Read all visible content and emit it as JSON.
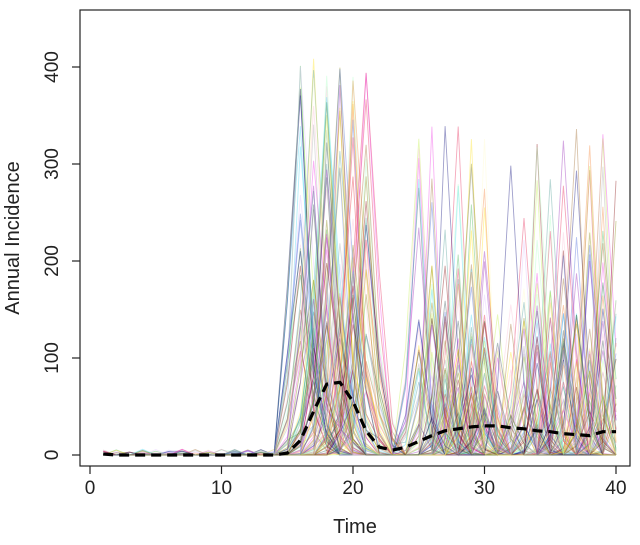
{
  "chart_data": {
    "type": "line",
    "title": "",
    "xlabel": "Time",
    "ylabel": "Annual Incidence",
    "xlim": [
      0,
      41
    ],
    "ylim": [
      0,
      450
    ],
    "x_ticks": [
      0,
      10,
      20,
      30,
      40
    ],
    "y_ticks": [
      0,
      100,
      200,
      300,
      400
    ],
    "x_tick_labels": [
      "0",
      "10",
      "20",
      "30",
      "40"
    ],
    "y_tick_labels": [
      "0",
      "100",
      "200",
      "300",
      "400"
    ],
    "grid": false,
    "legend": "none",
    "series": [
      {
        "style": "dashed",
        "color": "#000000",
        "x": [
          1,
          2,
          3,
          4,
          5,
          6,
          7,
          8,
          9,
          10,
          11,
          12,
          13,
          14,
          15,
          16,
          17,
          18,
          19,
          20,
          21,
          22,
          23,
          24,
          25,
          26,
          27,
          28,
          29,
          30,
          31,
          32,
          33,
          34,
          35,
          36,
          37,
          38,
          39,
          40
        ],
        "values": [
          1,
          0,
          0,
          0,
          0,
          0,
          0,
          0,
          0,
          0,
          0,
          0,
          0,
          0,
          2,
          15,
          45,
          73,
          75,
          55,
          25,
          8,
          5,
          8,
          14,
          20,
          25,
          27,
          29,
          30,
          30,
          28,
          27,
          25,
          24,
          22,
          21,
          20,
          24,
          24
        ]
      }
    ],
    "background_traces": {
      "description_hidden": true,
      "colors": [
        "#e6194b",
        "#3cb44b",
        "#4363d8",
        "#f58231",
        "#911eb4",
        "#42d4f4",
        "#f032e6",
        "#bfef45",
        "#fabed4",
        "#469990",
        "#dcbeff",
        "#9a6324",
        "#fffac8",
        "#800000",
        "#aaffc3",
        "#808000",
        "#000075",
        "#a9a9a9",
        "#ffe119",
        "#2f4f4f"
      ]
    }
  }
}
